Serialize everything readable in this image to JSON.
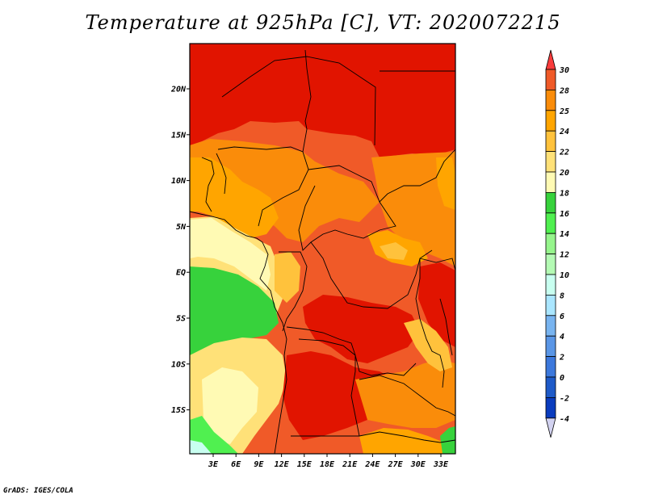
{
  "title": "Temperature at 925hPa [C], VT: 2020072215",
  "footer": "GrADS: IGES/COLA",
  "map": {
    "lat_labels": [
      "20N",
      "15N",
      "10N",
      "5N",
      "EQ",
      "5S",
      "10S",
      "15S"
    ],
    "lon_labels": [
      "3E",
      "6E",
      "9E",
      "12E",
      "15E",
      "18E",
      "21E",
      "24E",
      "27E",
      "30E",
      "33E"
    ]
  },
  "colorbar": {
    "levels": [
      "30",
      "28",
      "25",
      "24",
      "22",
      "20",
      "18",
      "16",
      "14",
      "12",
      "10",
      "8",
      "6",
      "4",
      "2",
      "0",
      "-2",
      "-4"
    ],
    "colors": [
      "#fa3c3c",
      "#f05a28",
      "#fa8c0a",
      "#ffa500",
      "#ffc23c",
      "#ffe178",
      "#fffab4",
      "#37d23c",
      "#50f050",
      "#96f58c",
      "#b4fab4",
      "#c8fff0",
      "#aae6ff",
      "#78b4f0",
      "#5a96e6",
      "#3c78dc",
      "#1e5ac8",
      "#0a3cbe",
      "#000082"
    ]
  },
  "colors": {
    "hot_red": "#e11400",
    "red_orange": "#f05a28",
    "orange": "#fa8c0a",
    "light_orange": "#ffa500",
    "yellow_orange": "#ffc23c",
    "pale_yellow": "#ffe178",
    "cream": "#fffab4",
    "green": "#37d23c"
  }
}
